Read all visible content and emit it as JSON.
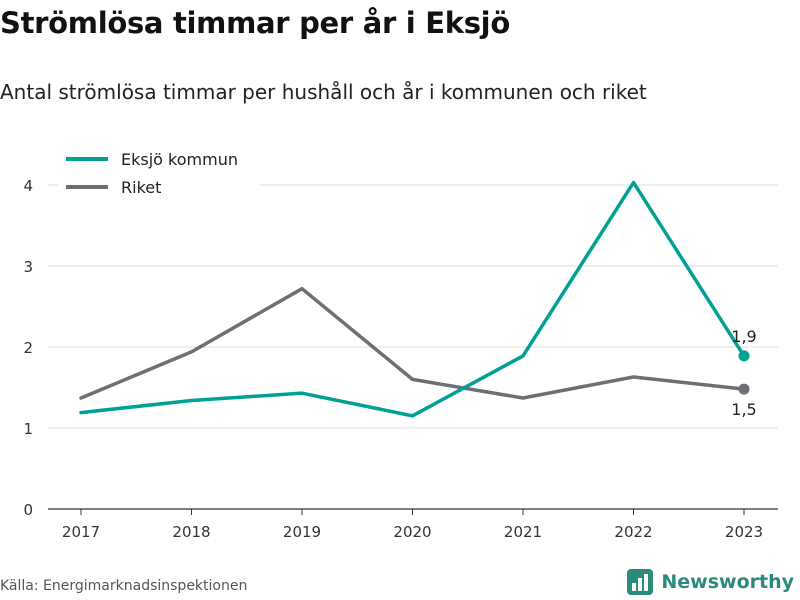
{
  "header": {
    "title": "Strömlösa timmar per år i Eksjö",
    "subtitle": "Antal strömlösa timmar per hushåll och år i kommunen och riket"
  },
  "footer": {
    "source": "Källa: Energimarknadsinspektionen",
    "brand": "Newsworthy",
    "brand_icon": "bar-chart-logo-icon"
  },
  "colors": {
    "eksjo": "#00a095",
    "riket": "#6e6e74",
    "grid": "#dddddd",
    "brand": "#2a8a7e"
  },
  "chart_data": {
    "type": "line",
    "x": [
      "2017",
      "2018",
      "2019",
      "2020",
      "2021",
      "2022",
      "2023"
    ],
    "series": [
      {
        "name": "Eksjö kommun",
        "values": [
          1.19,
          1.34,
          1.43,
          1.15,
          1.89,
          4.03,
          1.89
        ]
      },
      {
        "name": "Riket",
        "values": [
          1.37,
          1.94,
          2.72,
          1.6,
          1.37,
          1.63,
          1.48
        ]
      }
    ],
    "end_labels": [
      "1,9",
      "1,5"
    ],
    "yticks": [
      "0",
      "1",
      "2",
      "3",
      "4"
    ],
    "ylim": [
      0,
      4.2
    ],
    "grid": true,
    "legend": "top-left"
  }
}
